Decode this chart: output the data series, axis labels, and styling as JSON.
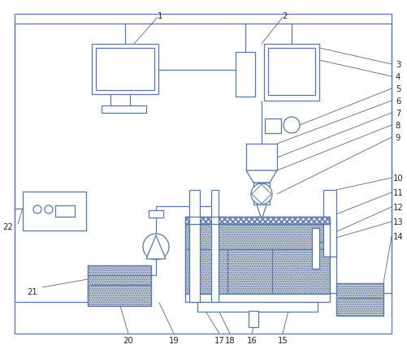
{
  "bg_color": "#ffffff",
  "lc": "#5577aa",
  "lw": 0.9,
  "fig_width": 5.02,
  "fig_height": 4.31,
  "dpi": 100
}
